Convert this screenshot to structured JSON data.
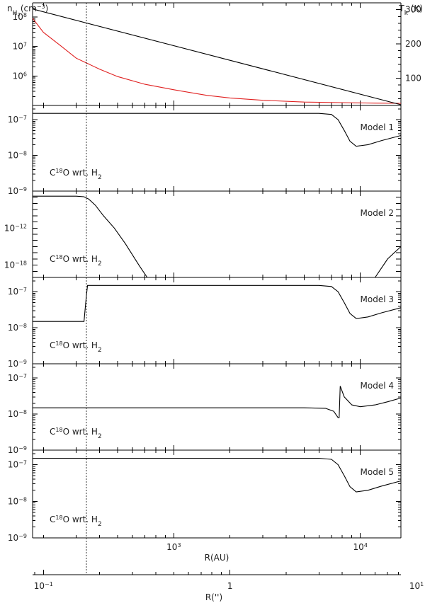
{
  "chart_data": [
    {
      "type": "line",
      "panel": "density-temperature",
      "xscale": "log",
      "xlim": [
        175,
        16500
      ],
      "yscale": "log",
      "ylim": [
        100000,
        300000000
      ],
      "left_label": {
        "base": "n",
        "sub": "H",
        "subsub": "2",
        "rest": "(cm",
        "sup": "−3",
        "close": ")"
      },
      "right_label": {
        "base": "T",
        "sub": "k",
        "rest": "  (K)"
      },
      "yticks": [
        {
          "value": 1000000,
          "base": "10",
          "exp": "6"
        },
        {
          "value": 10000000,
          "base": "10",
          "exp": "7"
        },
        {
          "value": 100000000,
          "base": "10",
          "exp": "8"
        }
      ],
      "y2lim": [
        20,
        320
      ],
      "y2ticks": [
        {
          "value": 100,
          "label": "100"
        },
        {
          "value": 200,
          "label": "200"
        },
        {
          "value": 300,
          "label": "300"
        }
      ],
      "series": [
        {
          "role": "density",
          "axis": "left",
          "color": "#e02020",
          "x": [
            175,
            200,
            250,
            300,
            400,
            500,
            700,
            1000,
            1500,
            2000,
            3000,
            5000,
            8000,
            12000,
            16500
          ],
          "y": [
            90000000,
            30000000,
            10000000,
            4000000,
            1700000,
            950000,
            520000,
            340000,
            220000,
            180000,
            150000,
            130000,
            125000,
            120000,
            118000
          ]
        },
        {
          "role": "temperature",
          "axis": "right",
          "color": "#000000",
          "x": [
            175,
            16500
          ],
          "y": [
            302,
            22
          ]
        }
      ]
    },
    {
      "type": "line",
      "panel": "model-1",
      "xscale": "log",
      "xlim": [
        175,
        16500
      ],
      "yscale": "log",
      "ylim": [
        1e-09,
        2.5e-07
      ],
      "yticks": [
        {
          "value": 1e-09,
          "base": "10",
          "exp": "−9"
        },
        {
          "value": 1e-08,
          "base": "10",
          "exp": "−8"
        },
        {
          "value": 1e-07,
          "base": "10",
          "exp": "−7"
        }
      ],
      "label": "Model 1",
      "species": {
        "pre": "C",
        "sup": "18",
        "mid": "O wrt. H",
        "sub": "2"
      },
      "series": [
        {
          "color": "#000000",
          "x": [
            175,
            300,
            500,
            1000,
            3000,
            6000,
            7000,
            7600,
            8200,
            8800,
            9500,
            11000,
            13000,
            16500
          ],
          "y": [
            1.5e-07,
            1.5e-07,
            1.5e-07,
            1.5e-07,
            1.5e-07,
            1.5e-07,
            1.4e-07,
            1e-07,
            5e-08,
            2.5e-08,
            1.8e-08,
            2e-08,
            2.6e-08,
            3.6e-08
          ]
        }
      ]
    },
    {
      "type": "line",
      "panel": "model-2",
      "xscale": "log",
      "xlim": [
        175,
        16500
      ],
      "yscale": "log",
      "ylim": [
        1e-20,
        1e-06
      ],
      "yticks": [
        {
          "value": 1e-18,
          "base": "10",
          "exp": "−18"
        },
        {
          "value": 1e-12,
          "base": "10",
          "exp": "−12"
        }
      ],
      "label": "Model 2",
      "species": {
        "pre": "C",
        "sup": "18",
        "mid": "O wrt. H",
        "sub": "2"
      },
      "series": [
        {
          "color": "#000000",
          "x": [
            175,
            300,
            330,
            350,
            380,
            420,
            480,
            550,
            650,
            720,
            12000,
            14000,
            16500
          ],
          "y": [
            1.5e-07,
            1.5e-07,
            1.2e-07,
            5e-08,
            5e-09,
            1e-10,
            1e-12,
            3e-15,
            1e-18,
            1e-20,
            1e-20,
            1e-17,
            1e-15
          ]
        }
      ]
    },
    {
      "type": "line",
      "panel": "model-3",
      "xscale": "log",
      "xlim": [
        175,
        16500
      ],
      "yscale": "log",
      "ylim": [
        1e-09,
        2.5e-07
      ],
      "yticks": [
        {
          "value": 1e-09,
          "base": "10",
          "exp": "−9"
        },
        {
          "value": 1e-08,
          "base": "10",
          "exp": "−8"
        },
        {
          "value": 1e-07,
          "base": "10",
          "exp": "−7"
        }
      ],
      "label": "Model 3",
      "species": {
        "pre": "C",
        "sup": "18",
        "mid": "O wrt. H",
        "sub": "2"
      },
      "series": [
        {
          "color": "#000000",
          "x": [
            175,
            300,
            330,
            340,
            345,
            1000,
            3000,
            6000,
            7000,
            7600,
            8200,
            8800,
            9500,
            11000,
            13000,
            16500
          ],
          "y": [
            1.5e-08,
            1.5e-08,
            1.5e-08,
            8e-08,
            1.5e-07,
            1.5e-07,
            1.5e-07,
            1.5e-07,
            1.4e-07,
            1e-07,
            5e-08,
            2.5e-08,
            1.8e-08,
            2e-08,
            2.6e-08,
            3.6e-08
          ]
        }
      ]
    },
    {
      "type": "line",
      "panel": "model-4",
      "xscale": "log",
      "xlim": [
        175,
        16500
      ],
      "yscale": "log",
      "ylim": [
        1e-09,
        2.5e-07
      ],
      "yticks": [
        {
          "value": 1e-09,
          "base": "10",
          "exp": "−9"
        },
        {
          "value": 1e-08,
          "base": "10",
          "exp": "−8"
        },
        {
          "value": 1e-07,
          "base": "10",
          "exp": "−7"
        }
      ],
      "label": "Model 4",
      "species": {
        "pre": "C",
        "sup": "18",
        "mid": "O wrt. H",
        "sub": "2"
      },
      "series": [
        {
          "color": "#000000",
          "x": [
            175,
            1000,
            3000,
            5000,
            6500,
            7200,
            7600,
            7700,
            7800,
            8200,
            9000,
            10000,
            12000,
            14000,
            16500
          ],
          "y": [
            1.5e-08,
            1.5e-08,
            1.5e-08,
            1.5e-08,
            1.45e-08,
            1.2e-08,
            8e-09,
            8e-09,
            6e-08,
            3e-08,
            1.8e-08,
            1.6e-08,
            1.8e-08,
            2.2e-08,
            2.8e-08
          ]
        }
      ]
    },
    {
      "type": "line",
      "panel": "model-5",
      "xscale": "log",
      "xlim": [
        175,
        16500
      ],
      "yscale": "log",
      "ylim": [
        1e-09,
        2.5e-07
      ],
      "yticks": [
        {
          "value": 1e-09,
          "base": "10",
          "exp": "−9"
        },
        {
          "value": 1e-08,
          "base": "10",
          "exp": "−8"
        },
        {
          "value": 1e-07,
          "base": "10",
          "exp": "−7"
        }
      ],
      "label": "Model 5",
      "species": {
        "pre": "C",
        "sup": "18",
        "mid": "O wrt. H",
        "sub": "2"
      },
      "series": [
        {
          "color": "#000000",
          "x": [
            175,
            300,
            500,
            1000,
            3000,
            6000,
            7000,
            7600,
            8200,
            8800,
            9500,
            11000,
            13000,
            16500
          ],
          "y": [
            1.5e-07,
            1.5e-07,
            1.5e-07,
            1.5e-07,
            1.5e-07,
            1.5e-07,
            1.4e-07,
            1e-07,
            5e-08,
            2.5e-08,
            1.8e-08,
            2e-08,
            2.6e-08,
            3.6e-08
          ]
        }
      ]
    }
  ],
  "shared_marker": {
    "x": 340
  },
  "x_axis_au": {
    "label": "R(AU)",
    "ticks": [
      {
        "value": 1000,
        "base": "10",
        "exp": "3"
      },
      {
        "value": 10000,
        "base": "10",
        "exp": "4"
      }
    ]
  },
  "x_axis_arcsec": {
    "label": "R('')",
    "au_per_arcsec": 2000,
    "ticks": [
      {
        "value": 0.1,
        "base": "10",
        "exp": "−1"
      },
      {
        "value": 1,
        "label": "1"
      },
      {
        "value": 10,
        "base": "10",
        "exp": "1"
      }
    ]
  }
}
